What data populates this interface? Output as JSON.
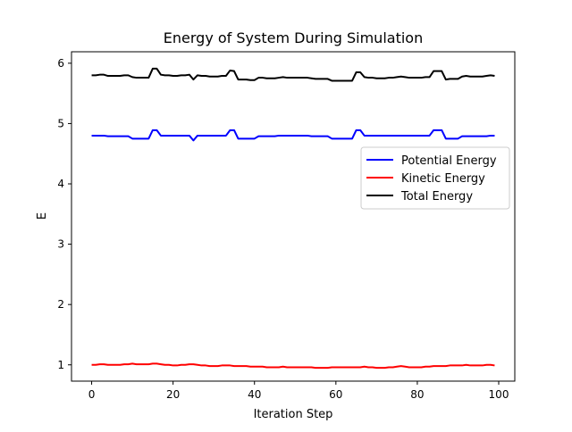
{
  "chart_data": {
    "type": "line",
    "title": "Energy of System During Simulation",
    "xlabel": "Iteration Step",
    "ylabel": "E",
    "xlim": [
      -4.95,
      103.95
    ],
    "ylim": [
      0.73,
      6.19
    ],
    "xticks": [
      0,
      20,
      40,
      60,
      80,
      100
    ],
    "yticks": [
      1,
      2,
      3,
      4,
      5,
      6
    ],
    "grid": false,
    "legend_position": "center-right",
    "x": [
      0,
      1,
      2,
      3,
      4,
      5,
      6,
      7,
      8,
      9,
      10,
      11,
      12,
      13,
      14,
      15,
      16,
      17,
      18,
      19,
      20,
      21,
      22,
      23,
      24,
      25,
      26,
      27,
      28,
      29,
      30,
      31,
      32,
      33,
      34,
      35,
      36,
      37,
      38,
      39,
      40,
      41,
      42,
      43,
      44,
      45,
      46,
      47,
      48,
      49,
      50,
      51,
      52,
      53,
      54,
      55,
      56,
      57,
      58,
      59,
      60,
      61,
      62,
      63,
      64,
      65,
      66,
      67,
      68,
      69,
      70,
      71,
      72,
      73,
      74,
      75,
      76,
      77,
      78,
      79,
      80,
      81,
      82,
      83,
      84,
      85,
      86,
      87,
      88,
      89,
      90,
      91,
      92,
      93,
      94,
      95,
      96,
      97,
      98,
      99
    ],
    "series": [
      {
        "name": "Potential Energy",
        "color": "#0000ff",
        "values": [
          4.8,
          4.8,
          4.8,
          4.8,
          4.79,
          4.79,
          4.79,
          4.79,
          4.79,
          4.79,
          4.75,
          4.75,
          4.75,
          4.75,
          4.75,
          4.89,
          4.89,
          4.8,
          4.8,
          4.8,
          4.8,
          4.8,
          4.8,
          4.8,
          4.8,
          4.72,
          4.8,
          4.8,
          4.8,
          4.8,
          4.8,
          4.8,
          4.8,
          4.8,
          4.89,
          4.89,
          4.75,
          4.75,
          4.75,
          4.75,
          4.75,
          4.79,
          4.79,
          4.79,
          4.79,
          4.79,
          4.8,
          4.8,
          4.8,
          4.8,
          4.8,
          4.8,
          4.8,
          4.8,
          4.79,
          4.79,
          4.79,
          4.79,
          4.79,
          4.75,
          4.75,
          4.75,
          4.75,
          4.75,
          4.75,
          4.89,
          4.89,
          4.8,
          4.8,
          4.8,
          4.8,
          4.8,
          4.8,
          4.8,
          4.8,
          4.8,
          4.8,
          4.8,
          4.8,
          4.8,
          4.8,
          4.8,
          4.8,
          4.8,
          4.89,
          4.89,
          4.89,
          4.75,
          4.75,
          4.75,
          4.75,
          4.79,
          4.79,
          4.79,
          4.79,
          4.79,
          4.79,
          4.79,
          4.8,
          4.8
        ]
      },
      {
        "name": "Kinetic Energy",
        "color": "#ff0000",
        "values": [
          1.0,
          1.0,
          1.01,
          1.01,
          1.0,
          1.0,
          1.0,
          1.0,
          1.01,
          1.01,
          1.02,
          1.01,
          1.01,
          1.01,
          1.01,
          1.02,
          1.02,
          1.01,
          1.0,
          1.0,
          0.99,
          0.99,
          1.0,
          1.0,
          1.01,
          1.01,
          1.0,
          0.99,
          0.99,
          0.98,
          0.98,
          0.98,
          0.99,
          0.99,
          0.99,
          0.98,
          0.98,
          0.98,
          0.98,
          0.97,
          0.97,
          0.97,
          0.97,
          0.96,
          0.96,
          0.96,
          0.96,
          0.97,
          0.96,
          0.96,
          0.96,
          0.96,
          0.96,
          0.96,
          0.96,
          0.95,
          0.95,
          0.95,
          0.95,
          0.96,
          0.96,
          0.96,
          0.96,
          0.96,
          0.96,
          0.96,
          0.96,
          0.97,
          0.96,
          0.96,
          0.95,
          0.95,
          0.95,
          0.96,
          0.96,
          0.97,
          0.98,
          0.97,
          0.96,
          0.96,
          0.96,
          0.96,
          0.97,
          0.97,
          0.98,
          0.98,
          0.98,
          0.98,
          0.99,
          0.99,
          0.99,
          0.99,
          1.0,
          0.99,
          0.99,
          0.99,
          0.99,
          1.0,
          1.0,
          0.99
        ]
      },
      {
        "name": "Total Energy",
        "color": "#000000",
        "values": [
          5.8,
          5.8,
          5.81,
          5.81,
          5.79,
          5.79,
          5.79,
          5.79,
          5.8,
          5.8,
          5.77,
          5.76,
          5.76,
          5.76,
          5.76,
          5.91,
          5.91,
          5.81,
          5.8,
          5.8,
          5.79,
          5.79,
          5.8,
          5.8,
          5.81,
          5.73,
          5.8,
          5.79,
          5.79,
          5.78,
          5.78,
          5.78,
          5.79,
          5.79,
          5.88,
          5.87,
          5.73,
          5.73,
          5.73,
          5.72,
          5.72,
          5.76,
          5.76,
          5.75,
          5.75,
          5.75,
          5.76,
          5.77,
          5.76,
          5.76,
          5.76,
          5.76,
          5.76,
          5.76,
          5.75,
          5.74,
          5.74,
          5.74,
          5.74,
          5.71,
          5.71,
          5.71,
          5.71,
          5.71,
          5.71,
          5.85,
          5.85,
          5.77,
          5.76,
          5.76,
          5.75,
          5.75,
          5.75,
          5.76,
          5.76,
          5.77,
          5.78,
          5.77,
          5.76,
          5.76,
          5.76,
          5.76,
          5.77,
          5.77,
          5.87,
          5.87,
          5.87,
          5.73,
          5.74,
          5.74,
          5.74,
          5.78,
          5.79,
          5.78,
          5.78,
          5.78,
          5.78,
          5.79,
          5.8,
          5.79
        ]
      }
    ]
  }
}
